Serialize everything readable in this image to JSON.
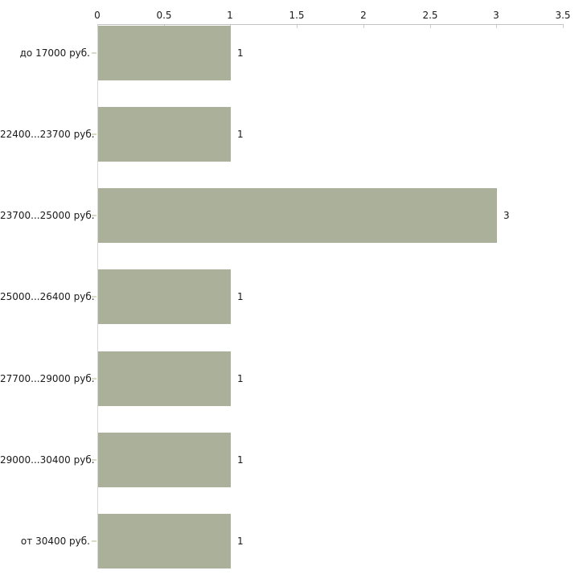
{
  "chart_data": {
    "type": "bar",
    "orientation": "horizontal",
    "title": "",
    "xlabel": "",
    "ylabel": "",
    "categories": [
      "до 17000 руб.",
      "22400...23700 руб.",
      "23700...25000 руб.",
      "25000...26400 руб.",
      "27700...29000 руб.",
      "29000...30400 руб.",
      "от 30400 руб."
    ],
    "values": [
      1,
      1,
      3,
      1,
      1,
      1,
      1
    ],
    "value_labels": [
      "1",
      "1",
      "3",
      "1",
      "1",
      "1",
      "1"
    ],
    "x_ticks": [
      0,
      0.5,
      1,
      1.5,
      2,
      2.5,
      3,
      3.5
    ],
    "x_tick_labels": [
      "0",
      "0.5",
      "1",
      "1.5",
      "2",
      "2.5",
      "3",
      "3.5"
    ],
    "xlim": [
      0,
      3.5
    ],
    "axis_position": "top",
    "grid": false,
    "legend": "none",
    "bar_color": "#aab099",
    "axis_line_color": "#c3c3c3",
    "vertical_axis_color": "#d6d6d6",
    "tick_mark_color": "#cdd0bc",
    "category_tick_color": "#d8dbc6",
    "text_color": "#1a1a1a",
    "background_color": "#ffffff"
  }
}
